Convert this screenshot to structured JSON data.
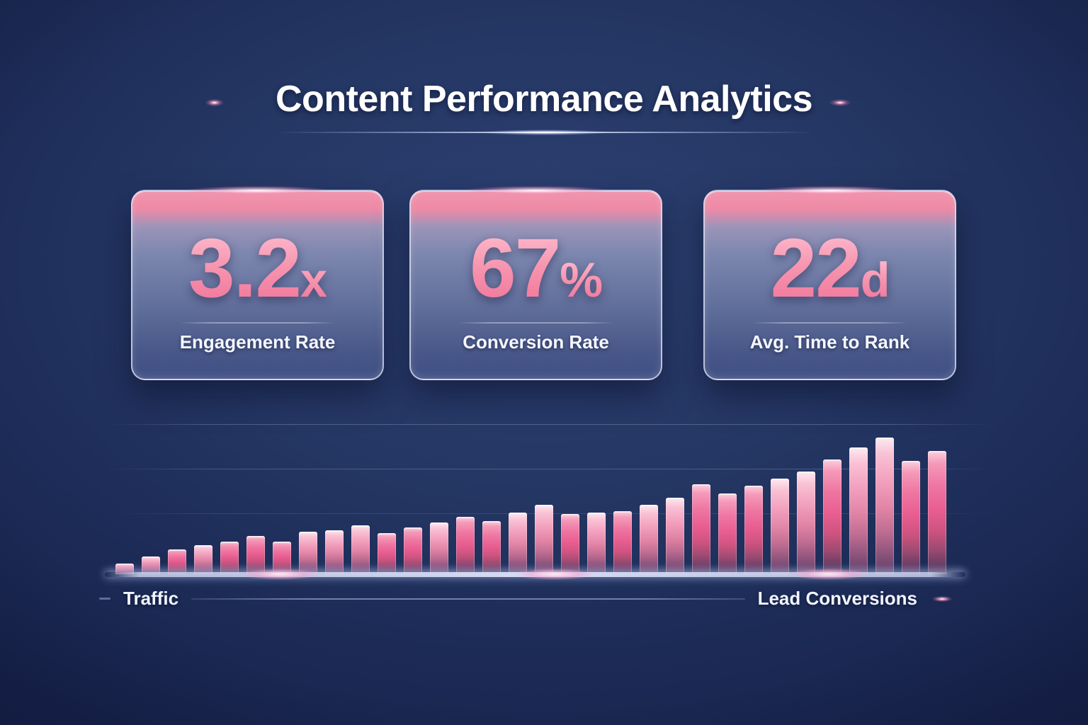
{
  "header": {
    "title": "Content Performance Analytics"
  },
  "cards": [
    {
      "value": "3.2",
      "suffix": "x",
      "label": "Engagement Rate"
    },
    {
      "value": "67",
      "suffix": "%",
      "label": "Conversion Rate"
    },
    {
      "value": "22",
      "suffix": "d",
      "label": "Avg. Time to Rank"
    }
  ],
  "chart_data": {
    "type": "bar",
    "title": "",
    "xlabel_left": "Traffic",
    "xlabel_right": "Lead Conversions",
    "ylim": [
      0,
      100
    ],
    "grid": "3 faint horizontal gridlines, glowing baseline",
    "legend": "none",
    "values": [
      8,
      13,
      18,
      21,
      24,
      28,
      24,
      31,
      32,
      36,
      30,
      34,
      38,
      42,
      39,
      45,
      51,
      44,
      45,
      46,
      51,
      56,
      66,
      59,
      65,
      70,
      75,
      84,
      93,
      100,
      83,
      90
    ],
    "tones": [
      "pale",
      "pale",
      "rose",
      "pale",
      "rose",
      "rose",
      "rose",
      "pale",
      "pale",
      "pale",
      "rose",
      "rose",
      "pale",
      "rose",
      "rose",
      "pale",
      "pale",
      "rose",
      "pale",
      "rose",
      "pale",
      "pale",
      "rose",
      "rose",
      "rose",
      "pale",
      "pale",
      "rose",
      "pale",
      "pale",
      "rose",
      "rose"
    ]
  },
  "colors": {
    "background_navy": "#1f2f5e",
    "accent_pink": "#ee7fa0",
    "card_glass_top": "#ef8aa5",
    "card_glass_bottom": "#405085",
    "bar_gradient_top": "#fbd0df",
    "bar_gradient_bottom": "#4d3459",
    "baseline_glow": "#d7dcf3",
    "text_white": "#f5f7ff"
  }
}
